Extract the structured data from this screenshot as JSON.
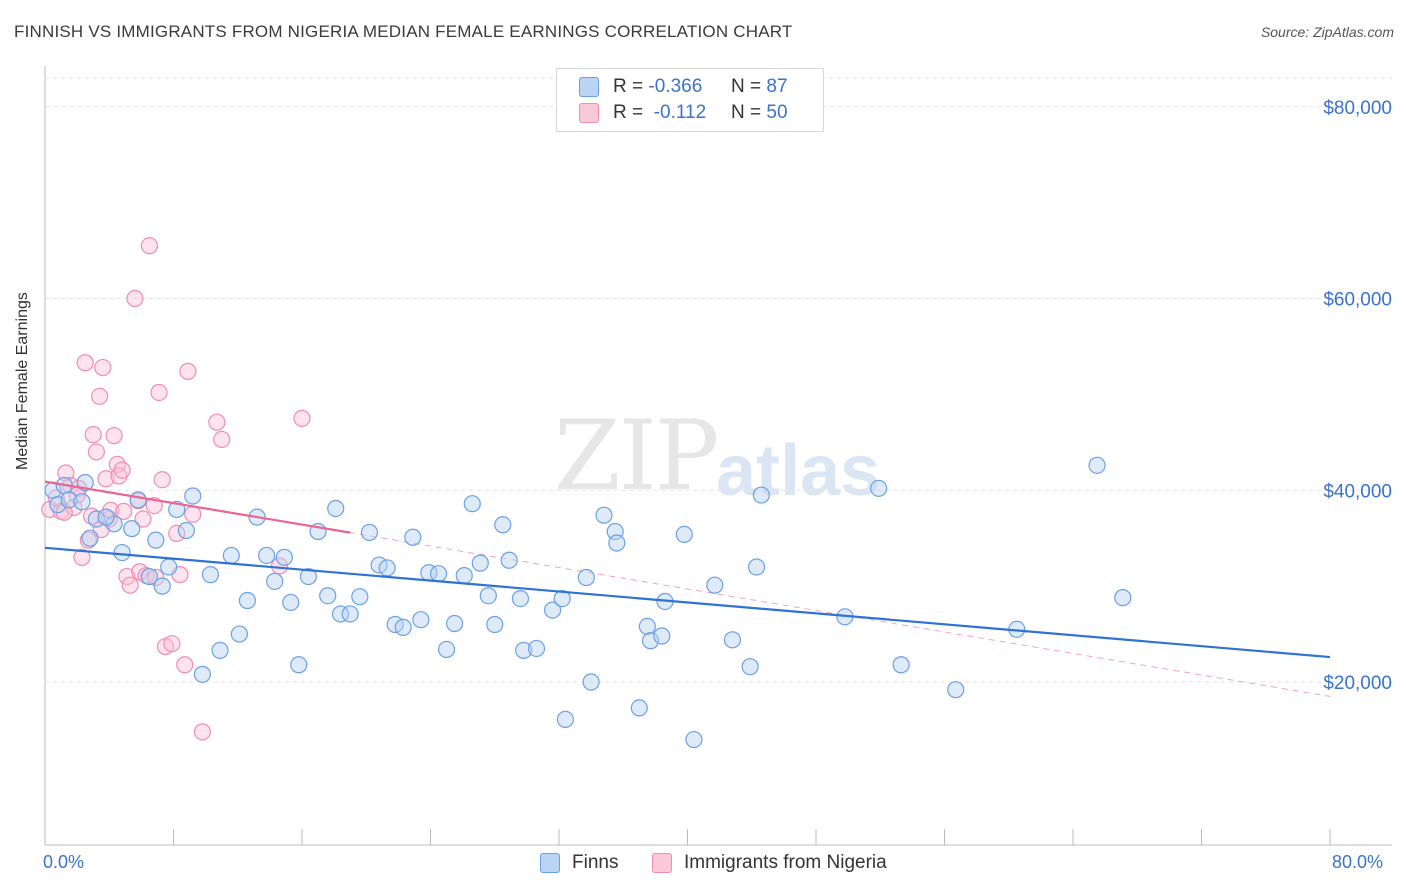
{
  "header": {
    "title": "FINNISH VS IMMIGRANTS FROM NIGERIA MEDIAN FEMALE EARNINGS CORRELATION CHART",
    "source": "Source: ZipAtlas.com"
  },
  "watermark": {
    "zip": "ZIP",
    "atlas": "atlas"
  },
  "legend_top": {
    "rows": [
      {
        "r_label": "R =",
        "r_value": "-0.366",
        "n_label": "N =",
        "n_value": "87",
        "color": "#6aa0e6"
      },
      {
        "r_label": "R =",
        "r_value": "-0.112",
        "n_label": "N =",
        "n_value": "50",
        "color": "#f08db0"
      }
    ]
  },
  "chart_data": {
    "type": "scatter",
    "title": "FINNISH VS IMMIGRANTS FROM NIGERIA MEDIAN FEMALE EARNINGS CORRELATION CHART",
    "xlabel": "",
    "ylabel": "Median Female Earnings",
    "xlim": [
      0,
      80
    ],
    "ylim": [
      3000,
      83000
    ],
    "x_tick_labels": [
      "0.0%",
      "80.0%"
    ],
    "y_ticks": [
      20000,
      40000,
      60000,
      80000
    ],
    "y_tick_labels": [
      "$20,000",
      "$40,000",
      "$60,000",
      "$80,000"
    ],
    "grid": true,
    "legend_position": "bottom",
    "series": [
      {
        "name": "Finns",
        "color": "#6aa0e6",
        "trend": {
          "x": [
            0,
            80
          ],
          "y": [
            34000,
            22600
          ]
        },
        "points": [
          [
            0.5,
            40000
          ],
          [
            0.8,
            38500
          ],
          [
            1.2,
            40500
          ],
          [
            1.5,
            39000
          ],
          [
            2.3,
            38800
          ],
          [
            2.8,
            35000
          ],
          [
            3.2,
            37000
          ],
          [
            4.3,
            36500
          ],
          [
            4.8,
            33500
          ],
          [
            5.4,
            36000
          ],
          [
            5.8,
            39000
          ],
          [
            6.5,
            31000
          ],
          [
            6.9,
            34800
          ],
          [
            7.3,
            30000
          ],
          [
            7.7,
            32000
          ],
          [
            8.2,
            38000
          ],
          [
            8.8,
            35800
          ],
          [
            9.2,
            39400
          ],
          [
            9.8,
            20800
          ],
          [
            10.3,
            31200
          ],
          [
            10.9,
            23300
          ],
          [
            11.6,
            33200
          ],
          [
            12.1,
            25000
          ],
          [
            12.6,
            28500
          ],
          [
            13.2,
            37200
          ],
          [
            13.8,
            33200
          ],
          [
            14.3,
            30500
          ],
          [
            14.9,
            33000
          ],
          [
            15.3,
            28300
          ],
          [
            15.8,
            21800
          ],
          [
            16.4,
            31000
          ],
          [
            17.0,
            35700
          ],
          [
            17.6,
            29000
          ],
          [
            18.1,
            38100
          ],
          [
            18.4,
            27100
          ],
          [
            19.0,
            27100
          ],
          [
            19.6,
            28900
          ],
          [
            20.2,
            35600
          ],
          [
            20.8,
            32200
          ],
          [
            21.3,
            31900
          ],
          [
            21.8,
            26000
          ],
          [
            22.3,
            25700
          ],
          [
            22.9,
            35100
          ],
          [
            23.4,
            26500
          ],
          [
            23.9,
            31400
          ],
          [
            24.5,
            31300
          ],
          [
            25.0,
            23400
          ],
          [
            25.5,
            26100
          ],
          [
            26.1,
            31100
          ],
          [
            26.6,
            38600
          ],
          [
            27.1,
            32400
          ],
          [
            27.6,
            29000
          ],
          [
            28.0,
            26000
          ],
          [
            28.5,
            36400
          ],
          [
            28.9,
            32700
          ],
          [
            29.6,
            28700
          ],
          [
            29.8,
            23300
          ],
          [
            30.6,
            23500
          ],
          [
            31.6,
            27500
          ],
          [
            32.2,
            28700
          ],
          [
            32.4,
            16100
          ],
          [
            33.7,
            30900
          ],
          [
            34.0,
            20000
          ],
          [
            34.8,
            37400
          ],
          [
            35.5,
            35700
          ],
          [
            35.6,
            34500
          ],
          [
            37.0,
            17300
          ],
          [
            37.5,
            25800
          ],
          [
            37.7,
            24300
          ],
          [
            38.4,
            24800
          ],
          [
            38.6,
            28400
          ],
          [
            39.8,
            35400
          ],
          [
            40.4,
            14000
          ],
          [
            41.7,
            30100
          ],
          [
            42.8,
            24400
          ],
          [
            43.9,
            21600
          ],
          [
            44.3,
            32000
          ],
          [
            44.6,
            39500
          ],
          [
            49.8,
            26800
          ],
          [
            51.9,
            40200
          ],
          [
            53.3,
            21800
          ],
          [
            56.7,
            19200
          ],
          [
            60.5,
            25500
          ],
          [
            65.5,
            42600
          ],
          [
            67.1,
            28800
          ],
          [
            2.5,
            40800
          ],
          [
            3.8,
            37200
          ]
        ]
      },
      {
        "name": "Immigrants from Nigeria",
        "color": "#f08db0",
        "trend": {
          "x": [
            0,
            80
          ],
          "y": [
            40900,
            18500
          ]
        },
        "points": [
          [
            0.3,
            38000
          ],
          [
            0.7,
            39200
          ],
          [
            1.0,
            37800
          ],
          [
            1.3,
            41800
          ],
          [
            1.6,
            40500
          ],
          [
            1.8,
            38200
          ],
          [
            2.1,
            40200
          ],
          [
            2.3,
            33000
          ],
          [
            2.5,
            53300
          ],
          [
            2.7,
            34800
          ],
          [
            2.9,
            37300
          ],
          [
            3.0,
            45800
          ],
          [
            3.2,
            44000
          ],
          [
            3.4,
            49800
          ],
          [
            3.6,
            52800
          ],
          [
            3.8,
            41200
          ],
          [
            4.0,
            37000
          ],
          [
            4.1,
            37900
          ],
          [
            4.3,
            45700
          ],
          [
            4.5,
            42700
          ],
          [
            4.6,
            41500
          ],
          [
            4.8,
            42100
          ],
          [
            4.9,
            37800
          ],
          [
            5.1,
            31000
          ],
          [
            5.3,
            30100
          ],
          [
            5.6,
            60000
          ],
          [
            5.9,
            31500
          ],
          [
            6.1,
            37000
          ],
          [
            6.3,
            31100
          ],
          [
            6.5,
            65500
          ],
          [
            6.8,
            38400
          ],
          [
            7.1,
            50200
          ],
          [
            7.3,
            41100
          ],
          [
            7.5,
            23700
          ],
          [
            7.9,
            24000
          ],
          [
            8.2,
            35500
          ],
          [
            8.4,
            31200
          ],
          [
            8.7,
            21800
          ],
          [
            8.9,
            52400
          ],
          [
            9.2,
            37500
          ],
          [
            9.8,
            14800
          ],
          [
            10.7,
            47100
          ],
          [
            11.0,
            45300
          ],
          [
            14.6,
            32100
          ],
          [
            16.0,
            47500
          ],
          [
            2.0,
            39500
          ],
          [
            1.2,
            37700
          ],
          [
            3.5,
            35900
          ],
          [
            5.8,
            38900
          ],
          [
            6.9,
            30900
          ]
        ]
      }
    ]
  },
  "bottom_legend": {
    "items": [
      {
        "label": "Finns",
        "color": "#6aa0e6"
      },
      {
        "label": "Immigrants from Nigeria",
        "color": "#f08db0"
      }
    ]
  }
}
